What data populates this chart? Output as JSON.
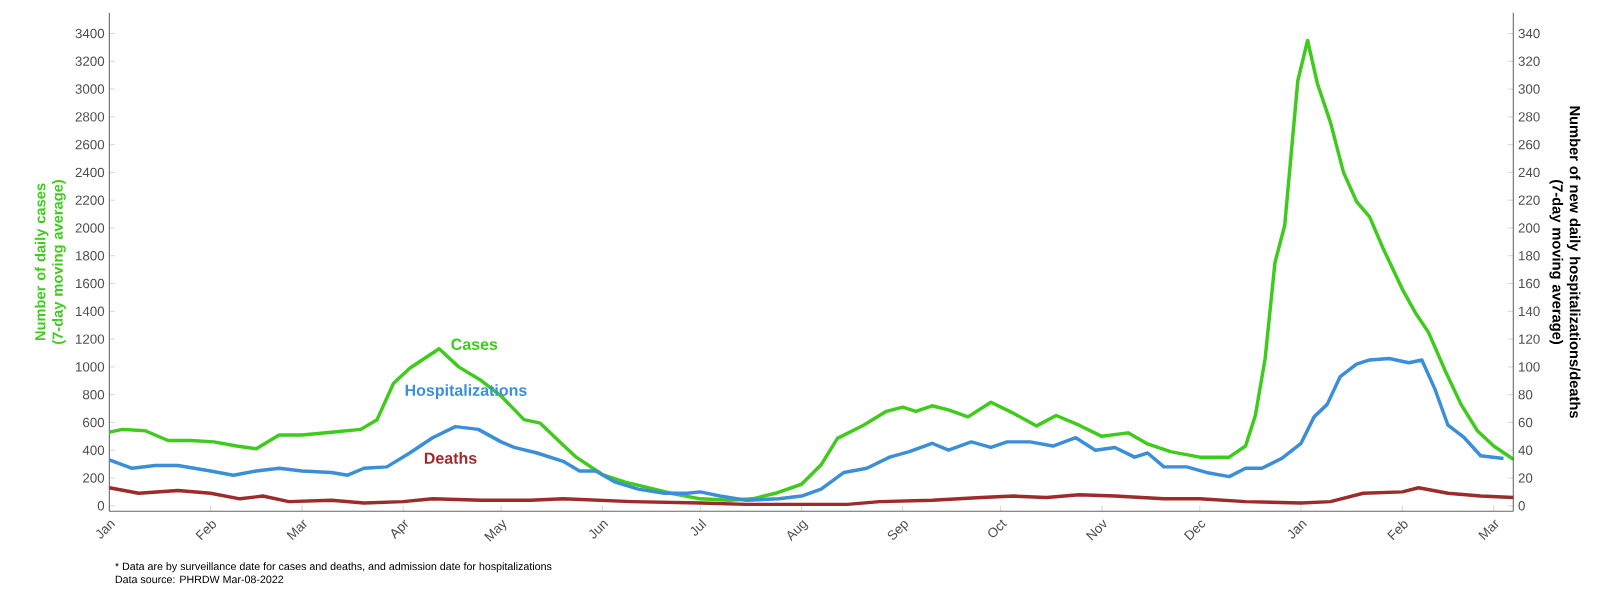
{
  "chart_data": {
    "type": "line",
    "ylabel": "Number of daily cases (7-day moving average)",
    "y2label": "Number of new daily hospitalizations/deaths (7-day moving average)",
    "xlim": [
      "2021-01-01",
      "2022-03-07"
    ],
    "xticks": [
      {
        "value": "2021-01-01",
        "label": "Jan"
      },
      {
        "value": "2021-02-01",
        "label": "Feb"
      },
      {
        "value": "2021-03-01",
        "label": "Mar"
      },
      {
        "value": "2021-04-01",
        "label": "Apr"
      },
      {
        "value": "2021-05-01",
        "label": "May"
      },
      {
        "value": "2021-06-01",
        "label": "Jun"
      },
      {
        "value": "2021-07-01",
        "label": "Jul"
      },
      {
        "value": "2021-08-01",
        "label": "Aug"
      },
      {
        "value": "2021-09-01",
        "label": "Sep"
      },
      {
        "value": "2021-10-01",
        "label": "Oct"
      },
      {
        "value": "2021-11-01",
        "label": "Nov"
      },
      {
        "value": "2021-12-01",
        "label": "Dec"
      },
      {
        "value": "2022-01-01",
        "label": "Jan"
      },
      {
        "value": "2022-02-01",
        "label": "Feb"
      },
      {
        "value": "2022-03-01",
        "label": "Mar"
      }
    ],
    "ylim": [
      -40,
      3550
    ],
    "yticks": [
      0,
      200,
      400,
      600,
      800,
      1000,
      1200,
      1400,
      1600,
      1800,
      2000,
      2200,
      2400,
      2600,
      2800,
      3000,
      3200,
      3400
    ],
    "y2lim": [
      -4,
      355
    ],
    "y2ticks": [
      0,
      20,
      40,
      60,
      80,
      100,
      120,
      140,
      160,
      180,
      200,
      220,
      240,
      260,
      280,
      300,
      320,
      340
    ],
    "series": [
      {
        "name": "Cases",
        "color": "#3ecb1c",
        "x": [
          "2021-01-01",
          "2021-01-05",
          "2021-01-12",
          "2021-01-19",
          "2021-01-26",
          "2021-02-02",
          "2021-02-09",
          "2021-02-15",
          "2021-02-22",
          "2021-03-01",
          "2021-03-10",
          "2021-03-19",
          "2021-03-24",
          "2021-03-29",
          "2021-04-03",
          "2021-04-12",
          "2021-04-18",
          "2021-04-25",
          "2021-05-01",
          "2021-05-08",
          "2021-05-13",
          "2021-05-19",
          "2021-05-24",
          "2021-06-01",
          "2021-06-08",
          "2021-06-15",
          "2021-06-22",
          "2021-07-01",
          "2021-07-10",
          "2021-07-17",
          "2021-07-24",
          "2021-08-01",
          "2021-08-07",
          "2021-08-12",
          "2021-08-20",
          "2021-08-27",
          "2021-09-01",
          "2021-09-05",
          "2021-09-10",
          "2021-09-15",
          "2021-09-21",
          "2021-09-28",
          "2021-10-05",
          "2021-10-12",
          "2021-10-18",
          "2021-10-25",
          "2021-11-01",
          "2021-11-09",
          "2021-11-15",
          "2021-11-22",
          "2021-12-01",
          "2021-12-10",
          "2021-12-15",
          "2021-12-18",
          "2021-12-21",
          "2021-12-24",
          "2021-12-27",
          "2021-12-31",
          "2022-01-03",
          "2022-01-06",
          "2022-01-10",
          "2022-01-14",
          "2022-01-18",
          "2022-01-22",
          "2022-01-26",
          "2022-02-01",
          "2022-02-05",
          "2022-02-09",
          "2022-02-14",
          "2022-02-19",
          "2022-02-24",
          "2022-03-01",
          "2022-03-07"
        ],
        "values": [
          530,
          550,
          540,
          470,
          470,
          460,
          430,
          410,
          510,
          510,
          530,
          550,
          620,
          880,
          990,
          1130,
          1000,
          900,
          790,
          620,
          595,
          460,
          350,
          225,
          170,
          130,
          90,
          50,
          40,
          50,
          90,
          155,
          295,
          485,
          580,
          680,
          710,
          680,
          720,
          690,
          640,
          745,
          665,
          575,
          650,
          580,
          500,
          525,
          445,
          390,
          350,
          350,
          430,
          650,
          1060,
          1750,
          2020,
          3060,
          3350,
          3040,
          2760,
          2400,
          2190,
          2080,
          1860,
          1560,
          1390,
          1250,
          980,
          730,
          540,
          430,
          335
        ]
      },
      {
        "name": "Hospitalizations",
        "color": "#3a8fd8",
        "axis": "y2",
        "x": [
          "2021-01-01",
          "2021-01-08",
          "2021-01-15",
          "2021-01-22",
          "2021-02-01",
          "2021-02-08",
          "2021-02-15",
          "2021-02-22",
          "2021-03-01",
          "2021-03-10",
          "2021-03-15",
          "2021-03-20",
          "2021-03-27",
          "2021-04-03",
          "2021-04-10",
          "2021-04-17",
          "2021-04-24",
          "2021-05-01",
          "2021-05-05",
          "2021-05-12",
          "2021-05-20",
          "2021-05-25",
          "2021-05-30",
          "2021-06-05",
          "2021-06-12",
          "2021-06-20",
          "2021-06-27",
          "2021-07-01",
          "2021-07-07",
          "2021-07-15",
          "2021-07-25",
          "2021-08-01",
          "2021-08-07",
          "2021-08-14",
          "2021-08-21",
          "2021-08-28",
          "2021-09-03",
          "2021-09-10",
          "2021-09-15",
          "2021-09-22",
          "2021-09-28",
          "2021-10-03",
          "2021-10-10",
          "2021-10-17",
          "2021-10-24",
          "2021-10-30",
          "2021-11-05",
          "2021-11-11",
          "2021-11-15",
          "2021-11-20",
          "2021-11-27",
          "2021-12-03",
          "2021-12-10",
          "2021-12-15",
          "2021-12-20",
          "2021-12-26",
          "2022-01-01",
          "2022-01-05",
          "2022-01-09",
          "2022-01-13",
          "2022-01-18",
          "2022-01-22",
          "2022-01-28",
          "2022-02-03",
          "2022-02-07",
          "2022-02-11",
          "2022-02-15",
          "2022-02-20",
          "2022-02-25",
          "2022-03-04"
        ],
        "values": [
          33,
          27,
          29,
          29,
          25,
          22,
          25,
          27,
          25,
          24,
          22,
          27,
          28,
          38,
          49,
          57,
          55,
          46,
          42,
          38,
          32,
          25,
          25,
          17,
          12,
          9,
          9,
          10,
          7,
          4,
          5,
          7,
          12,
          24,
          27,
          35,
          39,
          45,
          40,
          46,
          42,
          46,
          46,
          43,
          49,
          40,
          42,
          35,
          38,
          28,
          28,
          24,
          21,
          27,
          27,
          34,
          45,
          64,
          73,
          93,
          102,
          105,
          106,
          103,
          105,
          84,
          58,
          49,
          36,
          34
        ]
      },
      {
        "name": "Deaths",
        "color": "#9e2b2b",
        "axis": "y2",
        "x": [
          "2021-01-01",
          "2021-01-10",
          "2021-01-22",
          "2021-02-01",
          "2021-02-10",
          "2021-02-17",
          "2021-02-25",
          "2021-03-10",
          "2021-03-20",
          "2021-04-01",
          "2021-04-10",
          "2021-04-25",
          "2021-05-10",
          "2021-05-20",
          "2021-06-10",
          "2021-07-01",
          "2021-07-15",
          "2021-08-01",
          "2021-08-15",
          "2021-08-25",
          "2021-09-10",
          "2021-09-25",
          "2021-10-05",
          "2021-10-15",
          "2021-10-25",
          "2021-11-05",
          "2021-11-20",
          "2021-12-01",
          "2021-12-15",
          "2022-01-01",
          "2022-01-10",
          "2022-01-20",
          "2022-02-01",
          "2022-02-06",
          "2022-02-15",
          "2022-02-25",
          "2022-03-07"
        ],
        "values": [
          13,
          9,
          11,
          9,
          5,
          7,
          3,
          4,
          2,
          3,
          5,
          4,
          4,
          5,
          3,
          2,
          1,
          1,
          1,
          3,
          4,
          6,
          7,
          6,
          8,
          7,
          5,
          5,
          3,
          2,
          3,
          9,
          10,
          13,
          9,
          7,
          6
        ]
      }
    ],
    "annotations": [
      "* Data are by surveillance date for cases and deaths, and admission date for hospitalizations",
      "Data source: PHRDW Mar-08-2022"
    ]
  }
}
